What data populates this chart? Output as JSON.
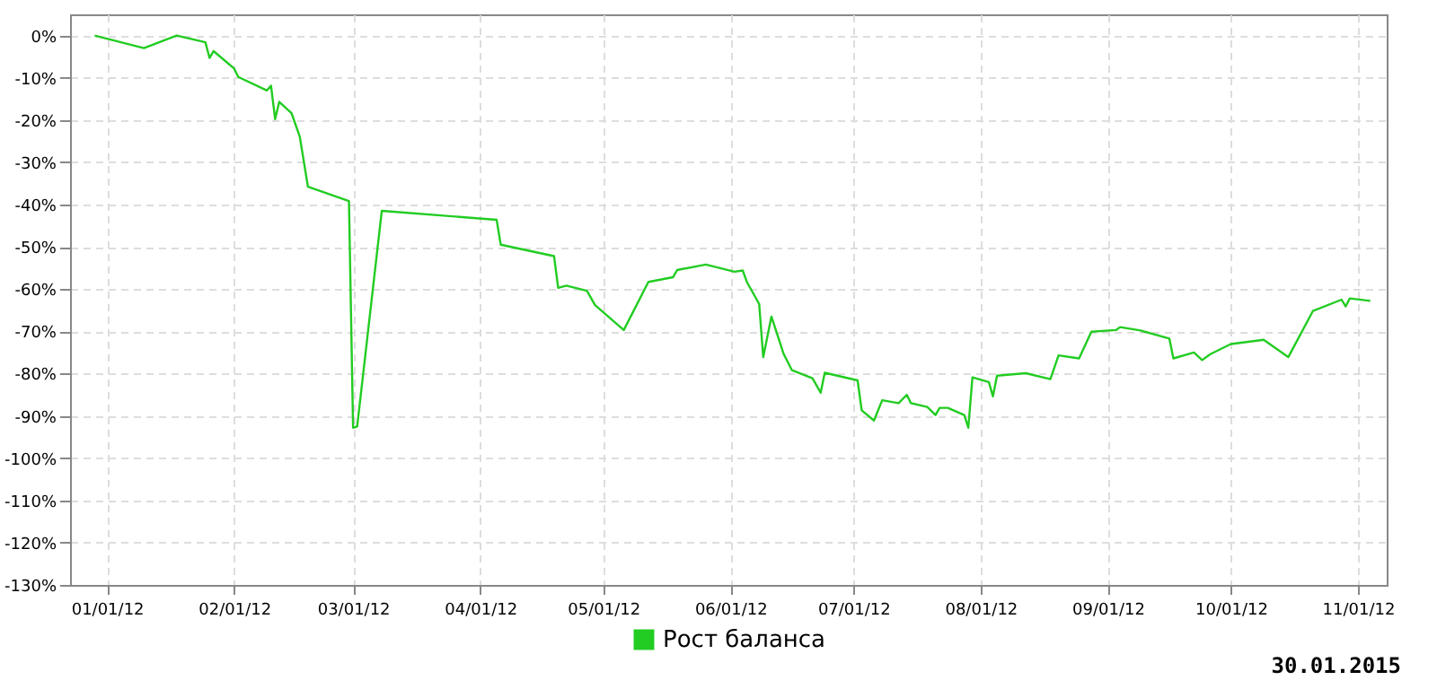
{
  "chart_data": {
    "type": "line",
    "x": [
      "2011-12-29",
      "2012-01-10",
      "2012-01-18",
      "2012-01-25",
      "2012-01-26",
      "2012-01-27",
      "2012-02-01",
      "2012-02-02",
      "2012-02-09",
      "2012-02-10",
      "2012-02-11",
      "2012-02-12",
      "2012-02-15",
      "2012-02-17",
      "2012-02-19",
      "2012-02-29",
      "2012-03-01",
      "2012-03-02",
      "2012-03-08",
      "2012-04-05",
      "2012-04-06",
      "2012-04-19",
      "2012-04-20",
      "2012-04-22",
      "2012-04-27",
      "2012-04-29",
      "2012-05-06",
      "2012-05-12",
      "2012-05-18",
      "2012-05-19",
      "2012-05-26",
      "2012-06-02",
      "2012-06-04",
      "2012-06-05",
      "2012-06-08",
      "2012-06-09",
      "2012-06-11",
      "2012-06-14",
      "2012-06-16",
      "2012-06-21",
      "2012-06-23",
      "2012-06-24",
      "2012-07-02",
      "2012-07-03",
      "2012-07-06",
      "2012-07-08",
      "2012-07-12",
      "2012-07-14",
      "2012-07-15",
      "2012-07-19",
      "2012-07-21",
      "2012-07-22",
      "2012-07-24",
      "2012-07-28",
      "2012-07-29",
      "2012-07-30",
      "2012-08-03",
      "2012-08-04",
      "2012-08-05",
      "2012-08-12",
      "2012-08-18",
      "2012-08-20",
      "2012-08-25",
      "2012-08-28",
      "2012-09-03",
      "2012-09-04",
      "2012-09-09",
      "2012-09-16",
      "2012-09-17",
      "2012-09-22",
      "2012-09-24",
      "2012-09-26",
      "2012-10-01",
      "2012-10-09",
      "2012-10-15",
      "2012-10-21",
      "2012-10-28",
      "2012-10-29",
      "2012-10-30",
      "2012-11-04"
    ],
    "series": [
      {
        "name": "Рост баланса",
        "color": "#22cc22",
        "values": [
          0,
          -3,
          0,
          -1.6,
          -5.3,
          -3.7,
          -7.8,
          -9.8,
          -13,
          -11.9,
          -19.8,
          -15.7,
          -18.4,
          -23.9,
          -35.8,
          -39.2,
          -92.8,
          -92.5,
          -41.5,
          -43.6,
          -49.5,
          -52.2,
          -59.7,
          -59.2,
          -60.4,
          -63.8,
          -69.7,
          -58.3,
          -57.2,
          -55.5,
          -54.2,
          -55.9,
          -55.6,
          -58.3,
          -63.5,
          -76.1,
          -66.5,
          -75.4,
          -79.2,
          -81.1,
          -84.5,
          -79.8,
          -81.6,
          -88.7,
          -91.1,
          -86.3,
          -87,
          -85,
          -87,
          -87.9,
          -89.8,
          -88.1,
          -88.1,
          -89.8,
          -92.8,
          -80.9,
          -82,
          -85.4,
          -80.5,
          -79.9,
          -81.3,
          -75.7,
          -76.4,
          -70.1,
          -69.7,
          -69,
          -69.8,
          -71.7,
          -76.4,
          -75,
          -76.8,
          -75.4,
          -73,
          -72,
          -76.1,
          -65.2,
          -62.5,
          -64.1,
          -62.2,
          -62.8
        ]
      }
    ],
    "xlim": [
      "2011-12-23",
      "2012-11-08"
    ],
    "xticks": [
      {
        "value": "2012-01-01",
        "label": "01/01/12"
      },
      {
        "value": "2012-02-01",
        "label": "02/01/12"
      },
      {
        "value": "2012-03-01",
        "label": "03/01/12"
      },
      {
        "value": "2012-04-01",
        "label": "04/01/12"
      },
      {
        "value": "2012-05-01",
        "label": "05/01/12"
      },
      {
        "value": "2012-06-01",
        "label": "06/01/12"
      },
      {
        "value": "2012-07-01",
        "label": "07/01/12"
      },
      {
        "value": "2012-08-01",
        "label": "08/01/12"
      },
      {
        "value": "2012-09-01",
        "label": "09/01/12"
      },
      {
        "value": "2012-10-01",
        "label": "10/01/12"
      },
      {
        "value": "2012-11-01",
        "label": "11/01/12"
      }
    ],
    "ylim": [
      -130,
      5
    ],
    "yticks": [
      {
        "value": 0,
        "label": "0%"
      },
      {
        "value": -10,
        "label": "-10%"
      },
      {
        "value": -20,
        "label": "-20%"
      },
      {
        "value": -30,
        "label": "-30%"
      },
      {
        "value": -40,
        "label": "-40%"
      },
      {
        "value": -50,
        "label": "-50%"
      },
      {
        "value": -60,
        "label": "-60%"
      },
      {
        "value": -70,
        "label": "-70%"
      },
      {
        "value": -80,
        "label": "-80%"
      },
      {
        "value": -90,
        "label": "-90%"
      },
      {
        "value": -100,
        "label": "-100%"
      },
      {
        "value": -110,
        "label": "-110%"
      },
      {
        "value": -120,
        "label": "-120%"
      },
      {
        "value": -130,
        "label": "-130%"
      }
    ],
    "grid": true,
    "legend": "bottom",
    "marker": "none",
    "line_style": "solid",
    "annotations": [
      "30.01.2015"
    ]
  }
}
